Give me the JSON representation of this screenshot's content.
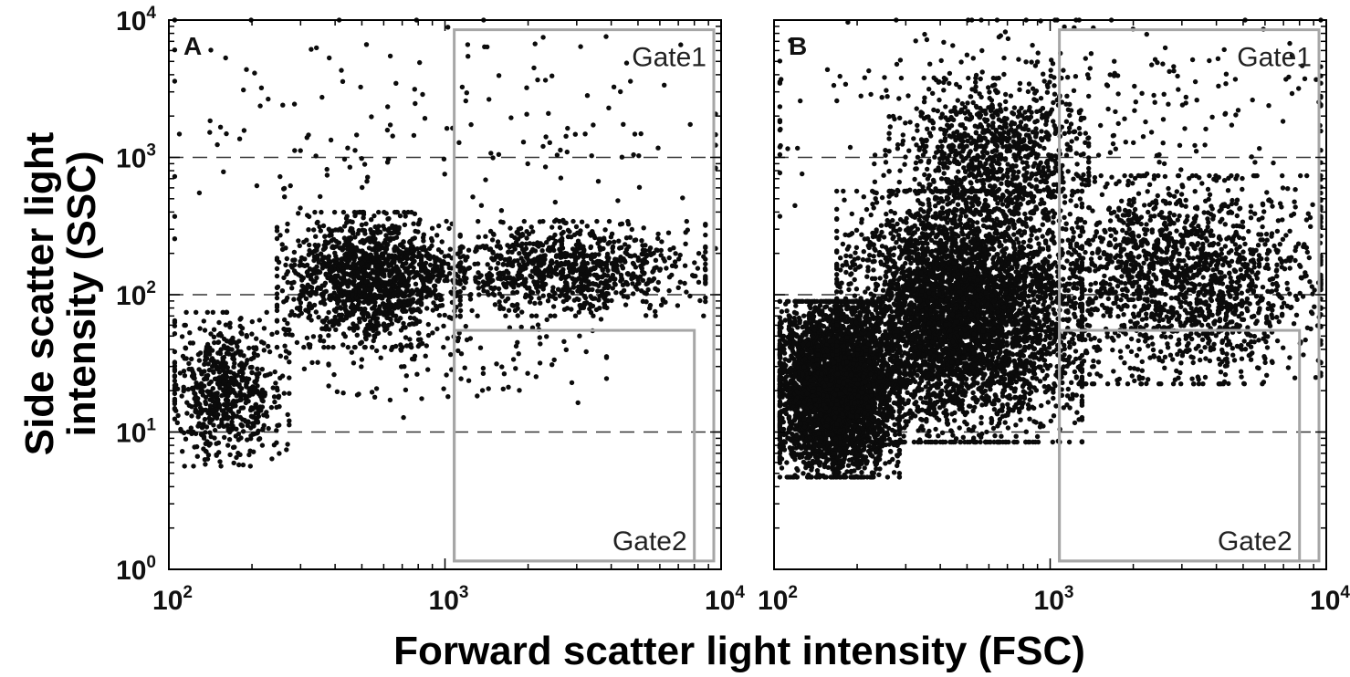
{
  "chart_data": [
    {
      "type": "scatter",
      "panel_label": "A",
      "x_scale": "log",
      "y_scale": "log",
      "xlim": [
        100,
        10000
      ],
      "ylim": [
        1,
        10000
      ],
      "x_ticks": [
        {
          "base": "10",
          "exp": "2"
        },
        {
          "base": "10",
          "exp": "3"
        },
        {
          "base": "10",
          "exp": "4"
        }
      ],
      "y_ticks": [
        {
          "base": "10",
          "exp": "0"
        },
        {
          "base": "10",
          "exp": "1"
        },
        {
          "base": "10",
          "exp": "2"
        },
        {
          "base": "10",
          "exp": "3"
        },
        {
          "base": "10",
          "exp": "4"
        }
      ],
      "dashed_reference_lines_y": [
        10,
        100,
        1000
      ],
      "gates": [
        {
          "label": "Gate1",
          "x_range": [
            1080,
            10000
          ],
          "y_range": [
            1.15,
            8500
          ]
        },
        {
          "label": "Gate2",
          "x_range": [
            1080,
            8000
          ],
          "y_range": [
            1.15,
            55
          ]
        }
      ],
      "populations": [
        {
          "n": 650,
          "x_range": [
            105,
            250
          ],
          "y_range": [
            7,
            60
          ]
        },
        {
          "n": 1350,
          "x_range": [
            280,
            1000
          ],
          "y_range": [
            50,
            330
          ]
        },
        {
          "n": 950,
          "x_range": [
            1000,
            7200
          ],
          "y_range": [
            80,
            300
          ]
        },
        {
          "n": 130,
          "x_range": [
            250,
            3000
          ],
          "y_range": [
            15,
            80
          ]
        },
        {
          "n": 170,
          "x_range": [
            110,
            8500
          ],
          "y_range": [
            300,
            9000
          ]
        }
      ],
      "point_color": "#0b0b0b"
    },
    {
      "type": "scatter",
      "panel_label": "B",
      "x_scale": "log",
      "y_scale": "log",
      "xlim": [
        100,
        10000
      ],
      "ylim": [
        1,
        10000
      ],
      "x_ticks": [
        {
          "base": "10",
          "exp": "2"
        },
        {
          "base": "10",
          "exp": "3"
        },
        {
          "base": "10",
          "exp": "4"
        }
      ],
      "y_ticks": [
        {
          "base": "10",
          "exp": "0"
        },
        {
          "base": "10",
          "exp": "1"
        },
        {
          "base": "10",
          "exp": "2"
        },
        {
          "base": "10",
          "exp": "3"
        },
        {
          "base": "10",
          "exp": "4"
        }
      ],
      "dashed_reference_lines_y": [
        10,
        100,
        1000
      ],
      "gates": [
        {
          "label": "Gate1",
          "x_range": [
            1080,
            10000
          ],
          "y_range": [
            1.15,
            8500
          ]
        },
        {
          "label": "Gate2",
          "x_range": [
            1080,
            8000
          ],
          "y_range": [
            1.15,
            55
          ]
        }
      ],
      "populations": [
        {
          "n": 3800,
          "x_range": [
            105,
            260
          ],
          "y_range": [
            6,
            70
          ]
        },
        {
          "n": 4500,
          "x_range": [
            200,
            1100
          ],
          "y_range": [
            12,
            400
          ]
        },
        {
          "n": 1700,
          "x_range": [
            1000,
            8500
          ],
          "y_range": [
            30,
            550
          ]
        },
        {
          "n": 900,
          "x_range": [
            300,
            1200
          ],
          "y_range": [
            300,
            3000
          ]
        },
        {
          "n": 350,
          "x_range": [
            105,
            8500
          ],
          "y_range": [
            500,
            9500
          ]
        }
      ],
      "point_color": "#0b0b0b"
    }
  ],
  "axes": {
    "ylabel_line1": "Side scatter light",
    "ylabel_line2": "intensity (SSC)",
    "xlabel": "Forward scatter light intensity (FSC)"
  },
  "colors": {
    "points": "#0b0b0b",
    "gate_box": "#a6a6a6",
    "reference_lines": "#333333",
    "axes": "#000000"
  }
}
